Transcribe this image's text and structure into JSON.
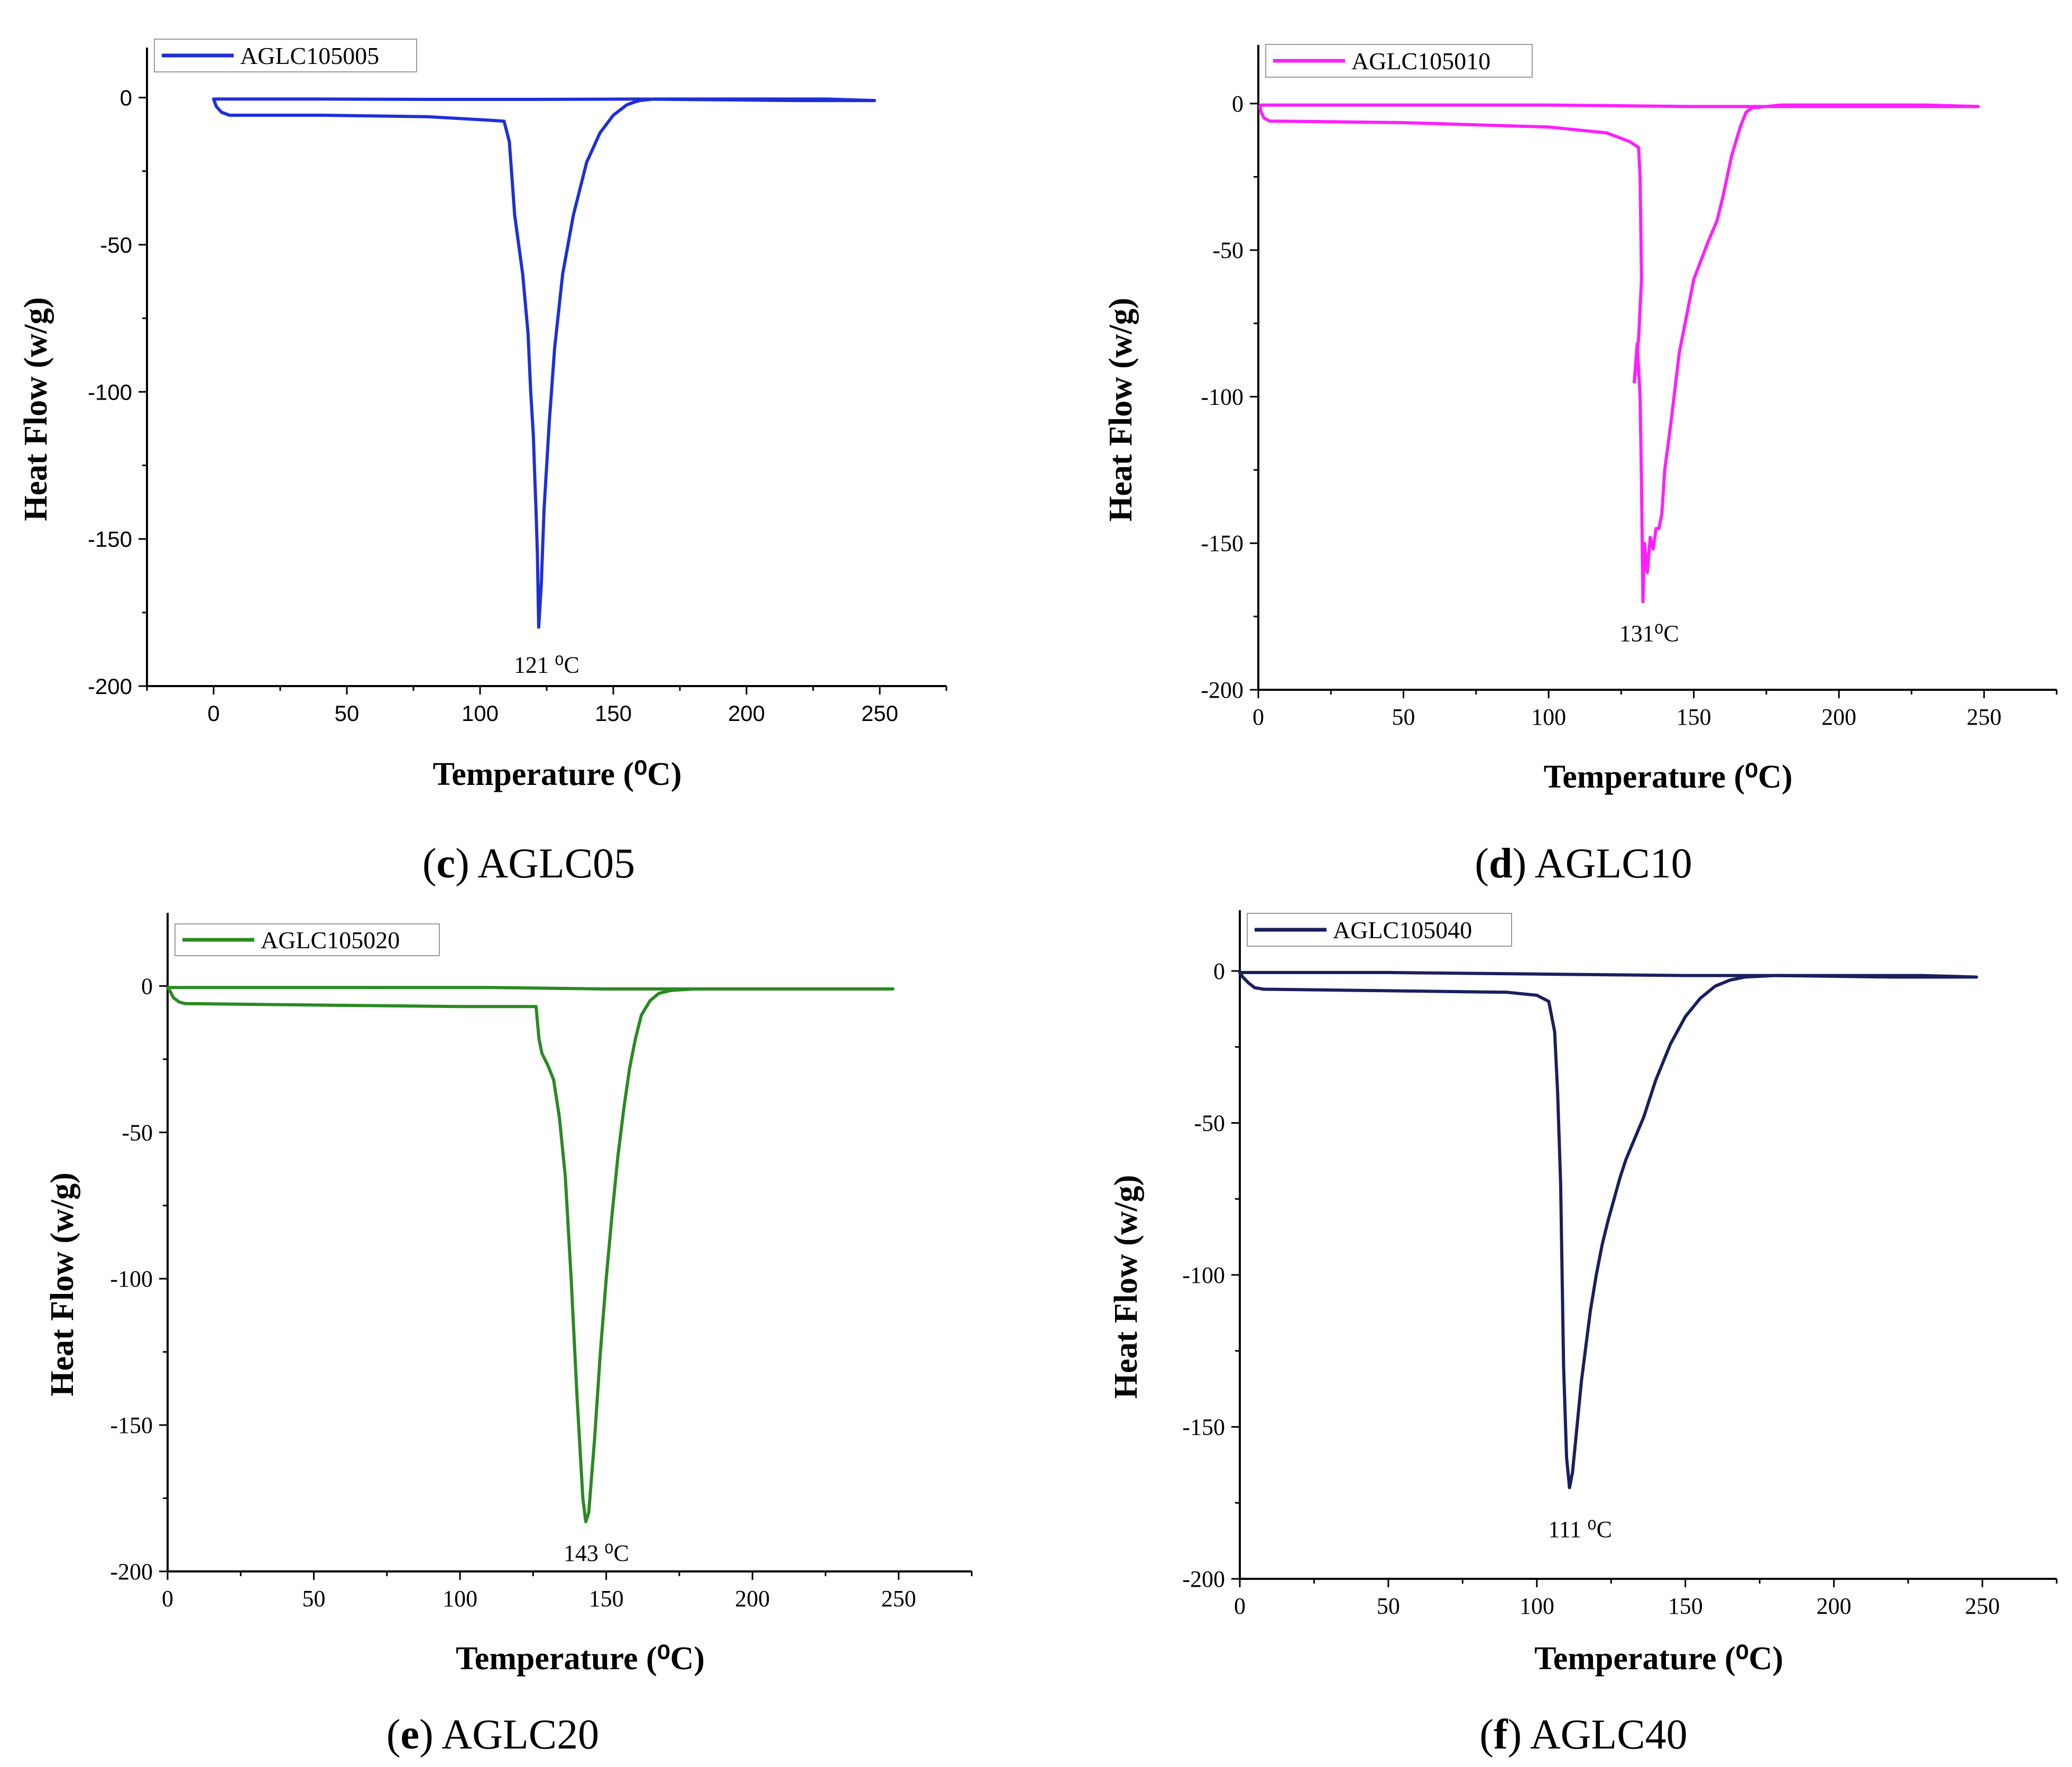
{
  "chart_data": [
    {
      "id": "c",
      "type": "line",
      "xlabel": "Temperature (⁰C)",
      "ylabel": "Heat Flow (w/g)",
      "xlim": [
        -25,
        275
      ],
      "ylim": [
        -200,
        17
      ],
      "xticks": [
        0,
        50,
        100,
        150,
        200,
        250
      ],
      "yticks": [
        0,
        -50,
        -100,
        -150,
        -200
      ],
      "xtick_labels": [
        "0",
        "50",
        "100",
        "150",
        "200",
        "250"
      ],
      "ytick_labels": [
        "0",
        "-50",
        "-100",
        "-150",
        "-200"
      ],
      "tick_style": "sans",
      "legend": "AGLC105005",
      "color": "#1f2fd6",
      "annotation": {
        "text": "121 ⁰C",
        "x": 121,
        "y": -190
      },
      "caption": {
        "letter": "c",
        "text": "AGLC05"
      },
      "series": [
        {
          "name": "AGLC105005",
          "segment": "heating",
          "x": [
            248,
            220,
            160,
            120,
            80,
            40,
            10,
            2,
            0,
            1,
            3,
            6
          ],
          "y": [
            -1,
            -1,
            -0.5,
            -0.6,
            -0.6,
            -0.5,
            -0.5,
            -0.5,
            -0.5,
            -3,
            -5,
            -6
          ]
        },
        {
          "name": "AGLC105005",
          "segment": "melting",
          "x": [
            6,
            40,
            80,
            100,
            109,
            111,
            113,
            116,
            118,
            119,
            120,
            120.5,
            121,
            121.5,
            122,
            123,
            124,
            126,
            128,
            131,
            135,
            140,
            145,
            150,
            155,
            158,
            160,
            165,
            180,
            200,
            230,
            248
          ],
          "y": [
            -6,
            -6,
            -6.5,
            -7.5,
            -8,
            -15,
            -40,
            -60,
            -80,
            -100,
            -115,
            -128,
            -140,
            -155,
            -180,
            -165,
            -140,
            -110,
            -85,
            -60,
            -40,
            -22,
            -12,
            -6,
            -2.5,
            -1.5,
            -1,
            -0.5,
            -0.5,
            -0.5,
            -0.5,
            -1
          ]
        }
      ]
    },
    {
      "id": "d",
      "type": "line",
      "xlabel": "Temperature (⁰C)",
      "ylabel": "Heat Flow (w/g)",
      "xlim": [
        0,
        275
      ],
      "ylim": [
        -200,
        20
      ],
      "xticks": [
        0,
        50,
        100,
        150,
        200,
        250
      ],
      "yticks": [
        0,
        -50,
        -100,
        -150,
        -200
      ],
      "xtick_labels": [
        "0",
        "50",
        "100",
        "150",
        "200",
        "250"
      ],
      "ytick_labels": [
        "0",
        "-50",
        "-100",
        "-150",
        "-200"
      ],
      "tick_style": "serif",
      "legend": "AGLC105010",
      "color": "#ff1eff",
      "annotation": {
        "text": "131⁰C",
        "x": 131,
        "y": -178
      },
      "caption": {
        "letter": "d",
        "text": "AGLC10"
      },
      "series": [
        {
          "name": "AGLC105010",
          "segment": "heating",
          "x": [
            248,
            200,
            150,
            100,
            50,
            10,
            1,
            0.5,
            1,
            2,
            4,
            8
          ],
          "y": [
            -1,
            -1,
            -1,
            -0.5,
            -0.5,
            -0.5,
            -0.5,
            -1,
            -3,
            -5,
            -6,
            -6
          ]
        },
        {
          "name": "AGLC105010",
          "segment": "melting",
          "x": [
            8,
            50,
            100,
            120,
            128,
            131,
            131.5,
            132,
            131,
            129.5,
            130.5,
            131.5,
            132,
            132.5,
            133,
            134,
            135,
            136,
            137,
            138,
            139,
            140,
            142,
            145,
            150,
            155,
            158,
            160,
            163,
            166,
            168,
            170,
            180,
            200,
            230,
            248
          ],
          "y": [
            -6,
            -6.5,
            -8,
            -10,
            -13,
            -15,
            -25,
            -60,
            -80,
            -95,
            -82,
            -100,
            -130,
            -170,
            -150,
            -160,
            -148,
            -152,
            -145,
            -145,
            -140,
            -125,
            -110,
            -85,
            -60,
            -47,
            -40,
            -32,
            -18,
            -8,
            -3,
            -1.5,
            -0.5,
            -0.5,
            -0.5,
            -1
          ]
        }
      ]
    },
    {
      "id": "e",
      "type": "line",
      "xlabel": "Temperature (⁰C)",
      "ylabel": "Heat Flow (w/g)",
      "xlim": [
        0,
        275
      ],
      "ylim": [
        -200,
        25
      ],
      "xticks": [
        0,
        50,
        100,
        150,
        200,
        250
      ],
      "yticks": [
        0,
        -50,
        -100,
        -150,
        -200
      ],
      "xtick_labels": [
        "0",
        "50",
        "100",
        "150",
        "200",
        "250"
      ],
      "ytick_labels": [
        "0",
        "-50",
        "-100",
        "-150",
        "-200"
      ],
      "tick_style": "serif",
      "legend": "AGLC105020",
      "color": "#2a8a22",
      "annotation": {
        "text": "143 ⁰C",
        "x": 143,
        "y": -191
      },
      "caption": {
        "letter": "e",
        "text": "AGLC20"
      },
      "series": [
        {
          "name": "AGLC105020",
          "segment": "heating",
          "x": [
            248,
            220,
            180,
            150,
            110,
            60,
            10,
            0,
            1,
            2,
            4,
            6
          ],
          "y": [
            -1,
            -1,
            -1,
            -1,
            -0.5,
            -0.5,
            -0.5,
            -0.5,
            -2,
            -4,
            -5.5,
            -6
          ]
        },
        {
          "name": "AGLC105020",
          "segment": "melting",
          "x": [
            6,
            50,
            100,
            120,
            126,
            127,
            128,
            130,
            132,
            134,
            136,
            138,
            140,
            142,
            143,
            144,
            146,
            148,
            150,
            152,
            154,
            156,
            158,
            160,
            162,
            165,
            168,
            172,
            180,
            200,
            230,
            248
          ],
          "y": [
            -6,
            -6.5,
            -7,
            -7,
            -7,
            -18,
            -23,
            -27,
            -32,
            -45,
            -65,
            -100,
            -140,
            -175,
            -183,
            -180,
            -155,
            -125,
            -100,
            -78,
            -58,
            -42,
            -28,
            -18,
            -10,
            -5,
            -2.5,
            -1.5,
            -1,
            -1,
            -1,
            -1
          ]
        }
      ]
    },
    {
      "id": "f",
      "type": "line",
      "xlabel": "Temperature (⁰C)",
      "ylabel": "Heat Flow (w/g)",
      "xlim": [
        0,
        275
      ],
      "ylim": [
        -200,
        20
      ],
      "xticks": [
        0,
        50,
        100,
        150,
        200,
        250
      ],
      "yticks": [
        0,
        -50,
        -100,
        -150,
        -200
      ],
      "xtick_labels": [
        "0",
        "50",
        "100",
        "150",
        "200",
        "250"
      ],
      "ytick_labels": [
        "0",
        "-50",
        "-100",
        "-150",
        "-200"
      ],
      "tick_style": "serif",
      "legend": "AGLC105040",
      "color": "#1a1f5e",
      "annotation": {
        "text": "111 ⁰C",
        "x": 111,
        "y": -181
      },
      "caption": {
        "letter": "f",
        "text": "AGLC40"
      },
      "series": [
        {
          "name": "AGLC105040",
          "segment": "heating",
          "x": [
            248,
            220,
            180,
            150,
            100,
            50,
            10,
            0,
            1,
            3,
            5,
            8
          ],
          "y": [
            -2,
            -2,
            -1.5,
            -1.5,
            -1,
            -0.5,
            -0.5,
            -0.5,
            -2,
            -4,
            -5.5,
            -6
          ]
        },
        {
          "name": "AGLC105040",
          "segment": "melting",
          "x": [
            8,
            50,
            90,
            100,
            104,
            106,
            107,
            108,
            108.5,
            109,
            110,
            111,
            112,
            113,
            115,
            118,
            120,
            122,
            124,
            126,
            128,
            130,
            133,
            136,
            140,
            145,
            150,
            155,
            160,
            165,
            170,
            180,
            200,
            230,
            248
          ],
          "y": [
            -6,
            -6.5,
            -7,
            -8,
            -10,
            -20,
            -40,
            -70,
            -100,
            -130,
            -160,
            -170,
            -165,
            -155,
            -135,
            -112,
            -100,
            -90,
            -82,
            -75,
            -68,
            -62,
            -55,
            -48,
            -36,
            -24,
            -15,
            -9,
            -5,
            -3,
            -2,
            -1.5,
            -1.5,
            -1.5,
            -2
          ]
        }
      ]
    }
  ]
}
